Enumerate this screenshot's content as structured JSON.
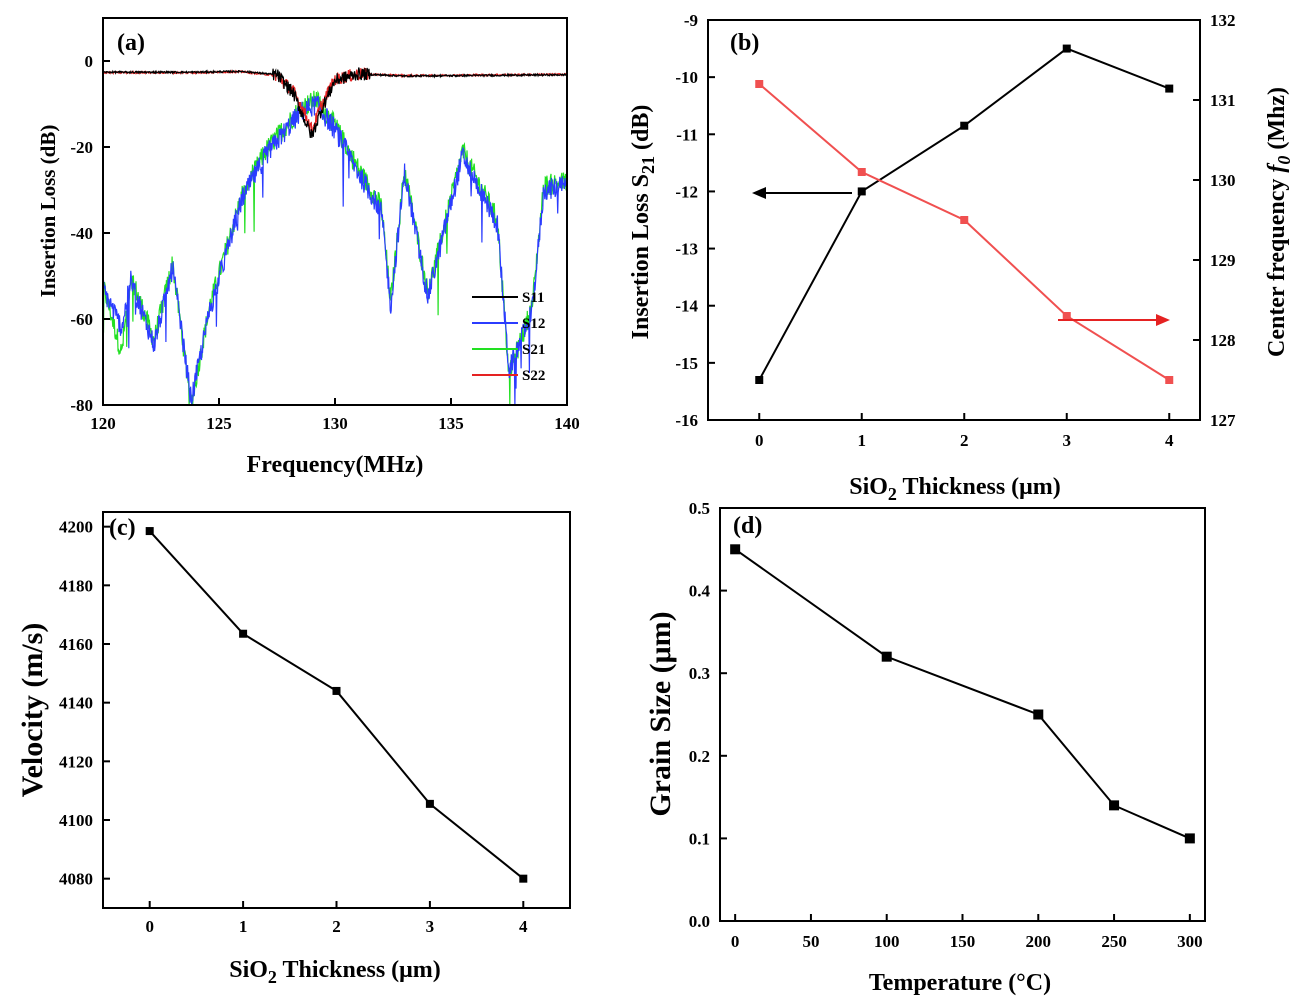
{
  "chart_data": [
    {
      "panel": "(a)",
      "type": "line",
      "xlabel": "Frequency(MHz)",
      "ylabel": "Insertion Loss (dB)",
      "xlim": [
        120,
        140
      ],
      "ylim": [
        -80,
        10
      ],
      "x_ticks": [
        "120",
        "125",
        "130",
        "135",
        "140"
      ],
      "y_ticks": [
        "-80",
        "-60",
        "-40",
        "-20",
        "0"
      ],
      "legend_position": "bottom-right",
      "series": [
        {
          "name": "S11",
          "color": "#000000",
          "x": [
            120,
            124,
            126,
            127.5,
            128.2,
            128.6,
            129.0,
            129.4,
            130.0,
            131.0,
            133,
            140
          ],
          "y": [
            -2.6,
            -2.6,
            -2.4,
            -3.2,
            -7.5,
            -12.5,
            -17.5,
            -11.5,
            -4.5,
            -3.0,
            -3.5,
            -3.2
          ]
        },
        {
          "name": "S12",
          "color": "#2b3cff",
          "x": [
            120,
            120.8,
            121.2,
            122.2,
            123.0,
            123.8,
            124.6,
            126.0,
            127.0,
            128.5,
            129.2,
            130.0,
            131.0,
            132.0,
            132.4,
            133.0,
            134.0,
            135.5,
            137.0,
            137.5,
            138.5,
            139.0,
            140
          ],
          "y": [
            -53,
            -62,
            -51,
            -66,
            -48,
            -79,
            -58,
            -32,
            -22,
            -12,
            -10,
            -16,
            -26,
            -35,
            -57,
            -26,
            -55,
            -22,
            -38,
            -72,
            -58,
            -30,
            -29
          ]
        },
        {
          "name": "S21",
          "color": "#22e022",
          "x": [
            120,
            120.8,
            121.2,
            122.2,
            123.0,
            123.8,
            124.6,
            126.0,
            127.0,
            128.5,
            129.2,
            130.0,
            131.0,
            132.0,
            132.4,
            133.0,
            134.0,
            135.5,
            137.0,
            137.5,
            138.5,
            139.0,
            140
          ],
          "y": [
            -52,
            -68,
            -50,
            -65,
            -47,
            -80,
            -57,
            -31,
            -21,
            -11,
            -9,
            -15,
            -25,
            -34,
            -56,
            -25,
            -54,
            -21,
            -37,
            -73,
            -57,
            -29,
            -28
          ]
        },
        {
          "name": "S22",
          "color": "#e52222",
          "x": [
            120,
            124,
            126,
            127.5,
            128.2,
            128.6,
            129.0,
            129.4,
            130.0,
            131.0,
            133,
            140
          ],
          "y": [
            -2.7,
            -2.7,
            -2.5,
            -3.4,
            -7.0,
            -11.0,
            -16.0,
            -10.5,
            -4.2,
            -3.0,
            -3.4,
            -3.1
          ]
        }
      ]
    },
    {
      "panel": "(b)",
      "type": "line",
      "xlabel_main": "SiO",
      "xlabel_sub": "2",
      "xlabel_rest": " Thickness (μm)",
      "ylabel_main": "Insertion Loss S",
      "ylabel_sub": "21",
      "ylabel_rest": " (dB)",
      "y2label_main": "Center frequency ",
      "y2label_italic": "f",
      "y2label_sub": "0",
      "y2label_rest": " (Mhz)",
      "xlim": [
        -0.5,
        4.3
      ],
      "ylim": [
        -16,
        -9
      ],
      "y2lim": [
        127,
        132
      ],
      "x_ticks": [
        "0",
        "1",
        "2",
        "3",
        "4"
      ],
      "y_ticks": [
        "-16",
        "-15",
        "-14",
        "-13",
        "-12",
        "-11",
        "-10",
        "-9"
      ],
      "y2_ticks": [
        "127",
        "128",
        "129",
        "130",
        "131",
        "132"
      ],
      "series": [
        {
          "name": "",
          "axis": "left",
          "color": "#000000",
          "x": [
            0,
            1,
            2,
            3,
            4
          ],
          "y": [
            -15.3,
            -12.0,
            -10.85,
            -9.5,
            -10.2
          ]
        },
        {
          "name": "",
          "axis": "right",
          "color": "#f05050",
          "x": [
            0,
            1,
            2,
            3,
            4
          ],
          "y": [
            131.2,
            130.1,
            129.5,
            128.3,
            127.5
          ]
        }
      ]
    },
    {
      "panel": "(c)",
      "type": "line",
      "xlabel_main": "SiO",
      "xlabel_sub": "2",
      "xlabel_rest": " Thickness (μm)",
      "ylabel": "Velocity (m/s)",
      "xlim": [
        -0.5,
        4.5
      ],
      "ylim": [
        4070,
        4205
      ],
      "x_ticks": [
        "0",
        "1",
        "2",
        "3",
        "4"
      ],
      "y_ticks": [
        "4080",
        "4100",
        "4120",
        "4140",
        "4160",
        "4180",
        "4200"
      ],
      "series": [
        {
          "name": "",
          "color": "#000000",
          "x": [
            0,
            1,
            2,
            3,
            4
          ],
          "y": [
            4198.5,
            4163.5,
            4144,
            4105.5,
            4080
          ]
        }
      ]
    },
    {
      "panel": "(d)",
      "type": "line",
      "xlabel": "Temperature (°C)",
      "ylabel": "Grain Size (μm)",
      "xlim": [
        -10,
        310
      ],
      "ylim": [
        0.0,
        0.5
      ],
      "x_ticks": [
        "0",
        "50",
        "100",
        "150",
        "200",
        "250",
        "300"
      ],
      "y_ticks": [
        "0.0",
        "0.1",
        "0.2",
        "0.3",
        "0.4",
        "0.5"
      ],
      "series": [
        {
          "name": "",
          "color": "#000000",
          "x": [
            0,
            100,
            200,
            250,
            300
          ],
          "y": [
            0.45,
            0.32,
            0.25,
            0.14,
            0.1
          ]
        }
      ]
    }
  ]
}
